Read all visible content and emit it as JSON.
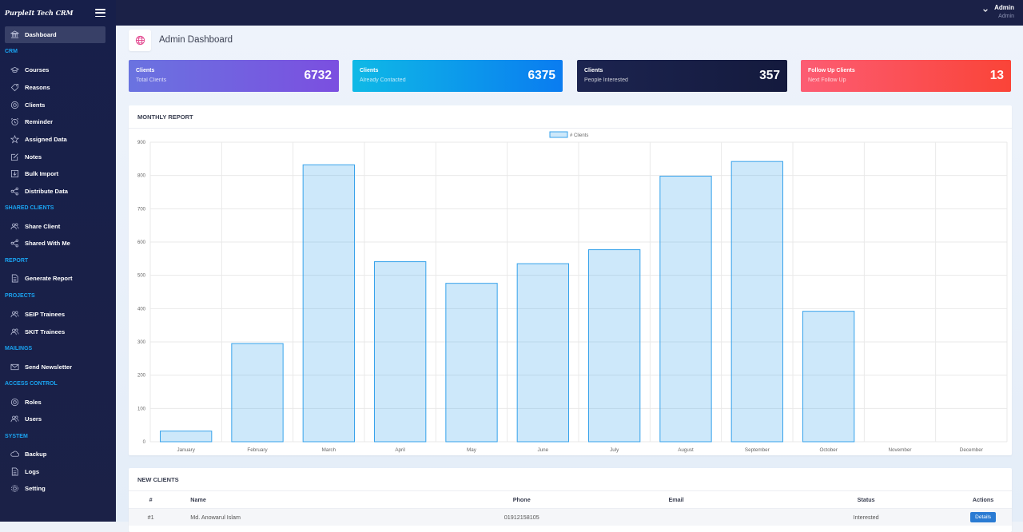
{
  "brand": {
    "name": "PurpleIt Tech CRM"
  },
  "sidebar": {
    "items": [
      {
        "id": "dashboard",
        "label": "Dashboard",
        "icon": "bank-icon",
        "active": true
      },
      {
        "id": "courses",
        "label": "Courses",
        "icon": "graduation-cap-icon"
      },
      {
        "id": "reasons",
        "label": "Reasons",
        "icon": "tag-icon"
      },
      {
        "id": "clients",
        "label": "Clients",
        "icon": "life-ring-icon"
      },
      {
        "id": "reminder",
        "label": "Reminder",
        "icon": "alarm-clock-icon"
      },
      {
        "id": "assigned",
        "label": "Assigned Data",
        "icon": "star-icon"
      },
      {
        "id": "notes",
        "label": "Notes",
        "icon": "edit-icon"
      },
      {
        "id": "bulk",
        "label": "Bulk Import",
        "icon": "import-icon"
      },
      {
        "id": "distribute",
        "label": "Distribute Data",
        "icon": "share-icon"
      },
      {
        "id": "share-client",
        "label": "Share Client",
        "icon": "users-icon"
      },
      {
        "id": "shared-with-me",
        "label": "Shared With Me",
        "icon": "share-icon"
      },
      {
        "id": "generate-report",
        "label": "Generate Report",
        "icon": "file-icon"
      },
      {
        "id": "seip",
        "label": "SEIP Trainees",
        "icon": "users-icon"
      },
      {
        "id": "skit",
        "label": "SKIT Trainees",
        "icon": "users-icon"
      },
      {
        "id": "newsletter",
        "label": "Send Newsletter",
        "icon": "envelope-icon"
      },
      {
        "id": "roles",
        "label": "Roles",
        "icon": "life-ring-icon"
      },
      {
        "id": "users",
        "label": "Users",
        "icon": "users-icon"
      },
      {
        "id": "backup",
        "label": "Backup",
        "icon": "cloud-icon"
      },
      {
        "id": "logs",
        "label": "Logs",
        "icon": "file-icon"
      },
      {
        "id": "setting",
        "label": "Setting",
        "icon": "gear-icon"
      }
    ],
    "sections": [
      "CRM",
      "SHARED CLIENTS",
      "REPORT",
      "PROJECTS",
      "MAILINGS",
      "ACCESS CONTROL",
      "SYSTEM"
    ]
  },
  "topbar": {
    "user_name": "Admin",
    "user_role": "Admin"
  },
  "page": {
    "title": "Admin Dashboard"
  },
  "cards": [
    {
      "title": "Clients",
      "subtitle": "Total Clients",
      "value": "6732",
      "gradient": [
        "#6a73e0",
        "#7b4fe0"
      ]
    },
    {
      "title": "Clients",
      "subtitle": "Already Contacted",
      "value": "6375",
      "gradient": [
        "#0fb9e6",
        "#0a7cf0"
      ]
    },
    {
      "title": "Clients",
      "subtitle": "People Interested",
      "value": "357",
      "gradient": [
        "#1c2450",
        "#141a3d"
      ]
    },
    {
      "title": "Follow Up Clients",
      "subtitle": "Next Follow Up",
      "value": "13",
      "gradient": [
        "#fc5c73",
        "#fa4438"
      ]
    }
  ],
  "monthly_report": {
    "title": "MONTHLY REPORT"
  },
  "chart_data": {
    "type": "bar",
    "categories": [
      "January",
      "February",
      "March",
      "April",
      "May",
      "June",
      "July",
      "August",
      "September",
      "October",
      "November",
      "December"
    ],
    "series": [
      {
        "name": "# Clients",
        "values": [
          32,
          295,
          832,
          541,
          476,
          535,
          577,
          798,
          842,
          392,
          0,
          0
        ],
        "color": "#36a2eb"
      }
    ],
    "ylim": [
      0,
      900
    ],
    "yticks": [
      0,
      100,
      200,
      300,
      400,
      500,
      600,
      700,
      800,
      900
    ],
    "legend": "top-center",
    "grid": true
  },
  "new_clients": {
    "title": "NEW CLIENTS",
    "columns": [
      "#",
      "Name",
      "Phone",
      "Email",
      "Status",
      "Actions"
    ],
    "rows": [
      {
        "num": "#1",
        "name": "Md. Anowarul Islam",
        "phone": "01912158105",
        "email": "",
        "status": "Interested",
        "action": "Details"
      }
    ]
  }
}
